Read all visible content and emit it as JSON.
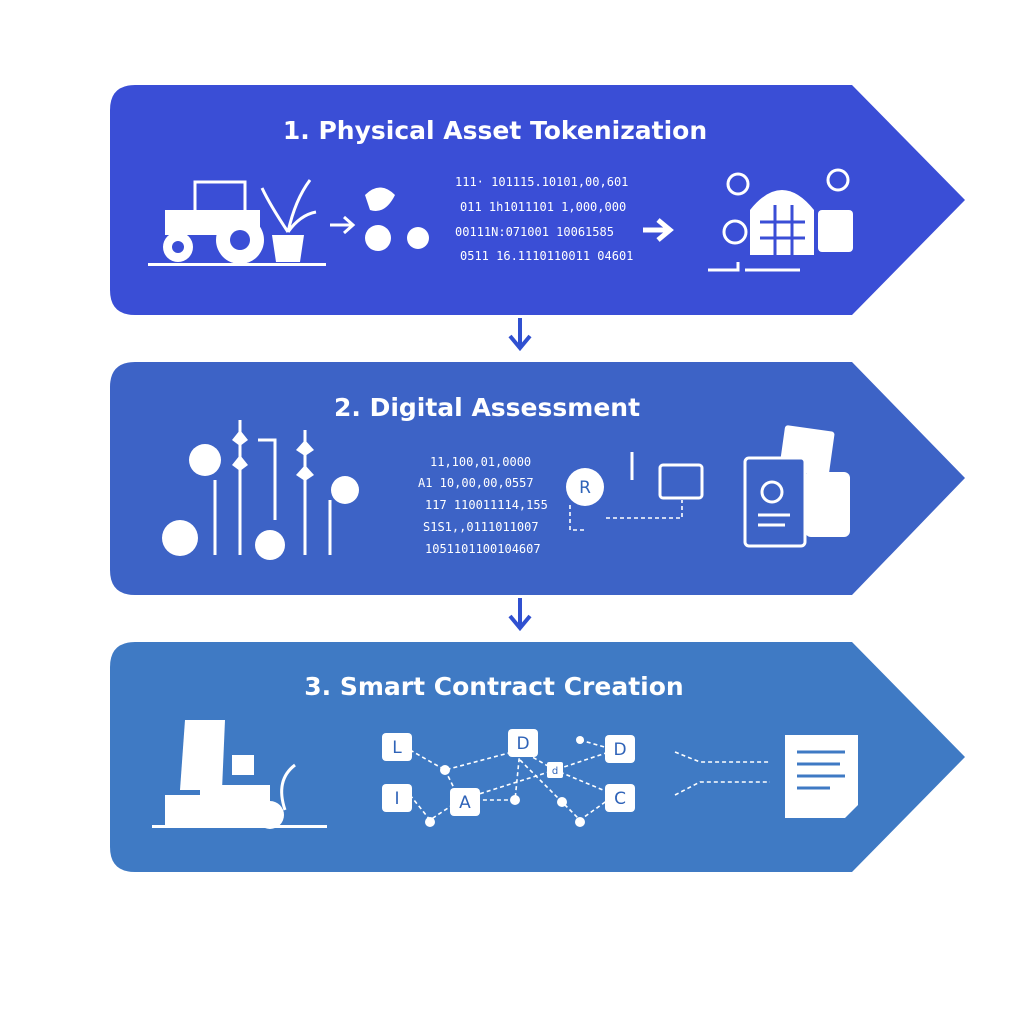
{
  "steps": [
    {
      "title": "1. Physical Asset Tokenization",
      "code": [
        "111· 101115.10101,00,601",
        "011 1h1011101 1,000,000",
        "00111N:071001 10061585",
        "0511 16.1110110011 04601"
      ]
    },
    {
      "title": "2. Digital Assessment",
      "code": [
        "11,100,01,0000",
        "A1 10,00,00,0557",
        "117 110011114,155",
        "S1S1,,0111011007",
        "1051101100104607"
      ],
      "node": "R"
    },
    {
      "title": "3. Smart Contract Creation",
      "nodes": [
        "L",
        "D",
        "D",
        "I",
        "A",
        "C"
      ],
      "small_node": "d"
    }
  ]
}
